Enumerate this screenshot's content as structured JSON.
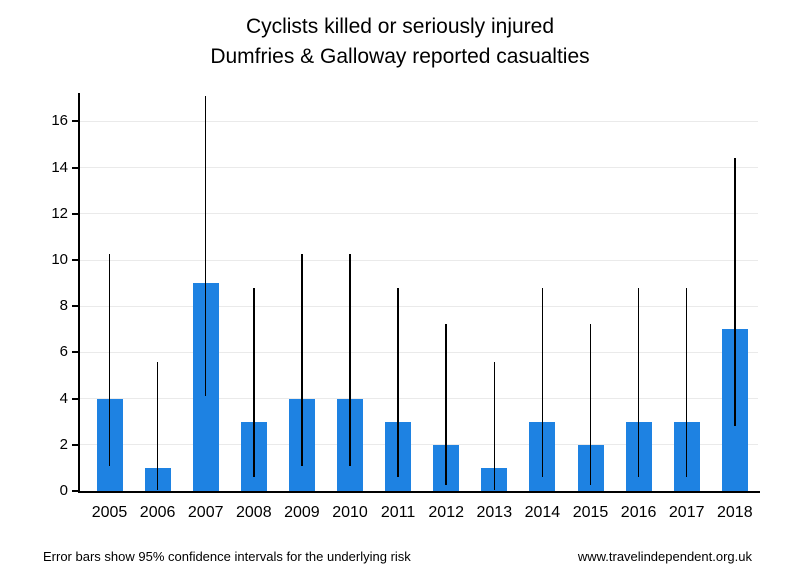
{
  "title": {
    "line1": "Cyclists killed or seriously injured",
    "line2": "Dumfries & Galloway reported casualties"
  },
  "footer": {
    "left": "Error bars show 95% confidence intervals for the underlying risk",
    "right": "www.travelindependent.org.uk"
  },
  "chart_data": {
    "type": "bar",
    "title": "Cyclists killed or seriously injured",
    "subtitle": "Dumfries & Galloway reported casualties",
    "categories": [
      "2005",
      "2006",
      "2007",
      "2008",
      "2009",
      "2010",
      "2011",
      "2012",
      "2013",
      "2014",
      "2015",
      "2016",
      "2017",
      "2018"
    ],
    "values": [
      4,
      1,
      9,
      3,
      4,
      4,
      3,
      2,
      1,
      3,
      2,
      3,
      3,
      7
    ],
    "error_bars": {
      "meaning": "95% confidence intervals for the underlying risk",
      "lower": [
        1.09,
        0.03,
        4.12,
        0.62,
        1.09,
        1.09,
        0.62,
        0.24,
        0.03,
        0.62,
        0.24,
        0.62,
        0.62,
        2.81
      ],
      "upper": [
        10.24,
        5.57,
        17.08,
        8.77,
        10.24,
        10.24,
        8.77,
        7.22,
        5.57,
        8.77,
        7.22,
        8.77,
        8.77,
        14.42
      ]
    },
    "xlabel": "",
    "ylabel": "",
    "ylim": [
      0,
      17.23
    ],
    "yticks": [
      0,
      2,
      4,
      6,
      8,
      10,
      12,
      14,
      16
    ],
    "grid": true,
    "legend_position": "none",
    "bar_color": "#1E82E2",
    "error_color": "#000000",
    "gridline_color": "#EAEAEA",
    "axis_color": "#000000"
  }
}
